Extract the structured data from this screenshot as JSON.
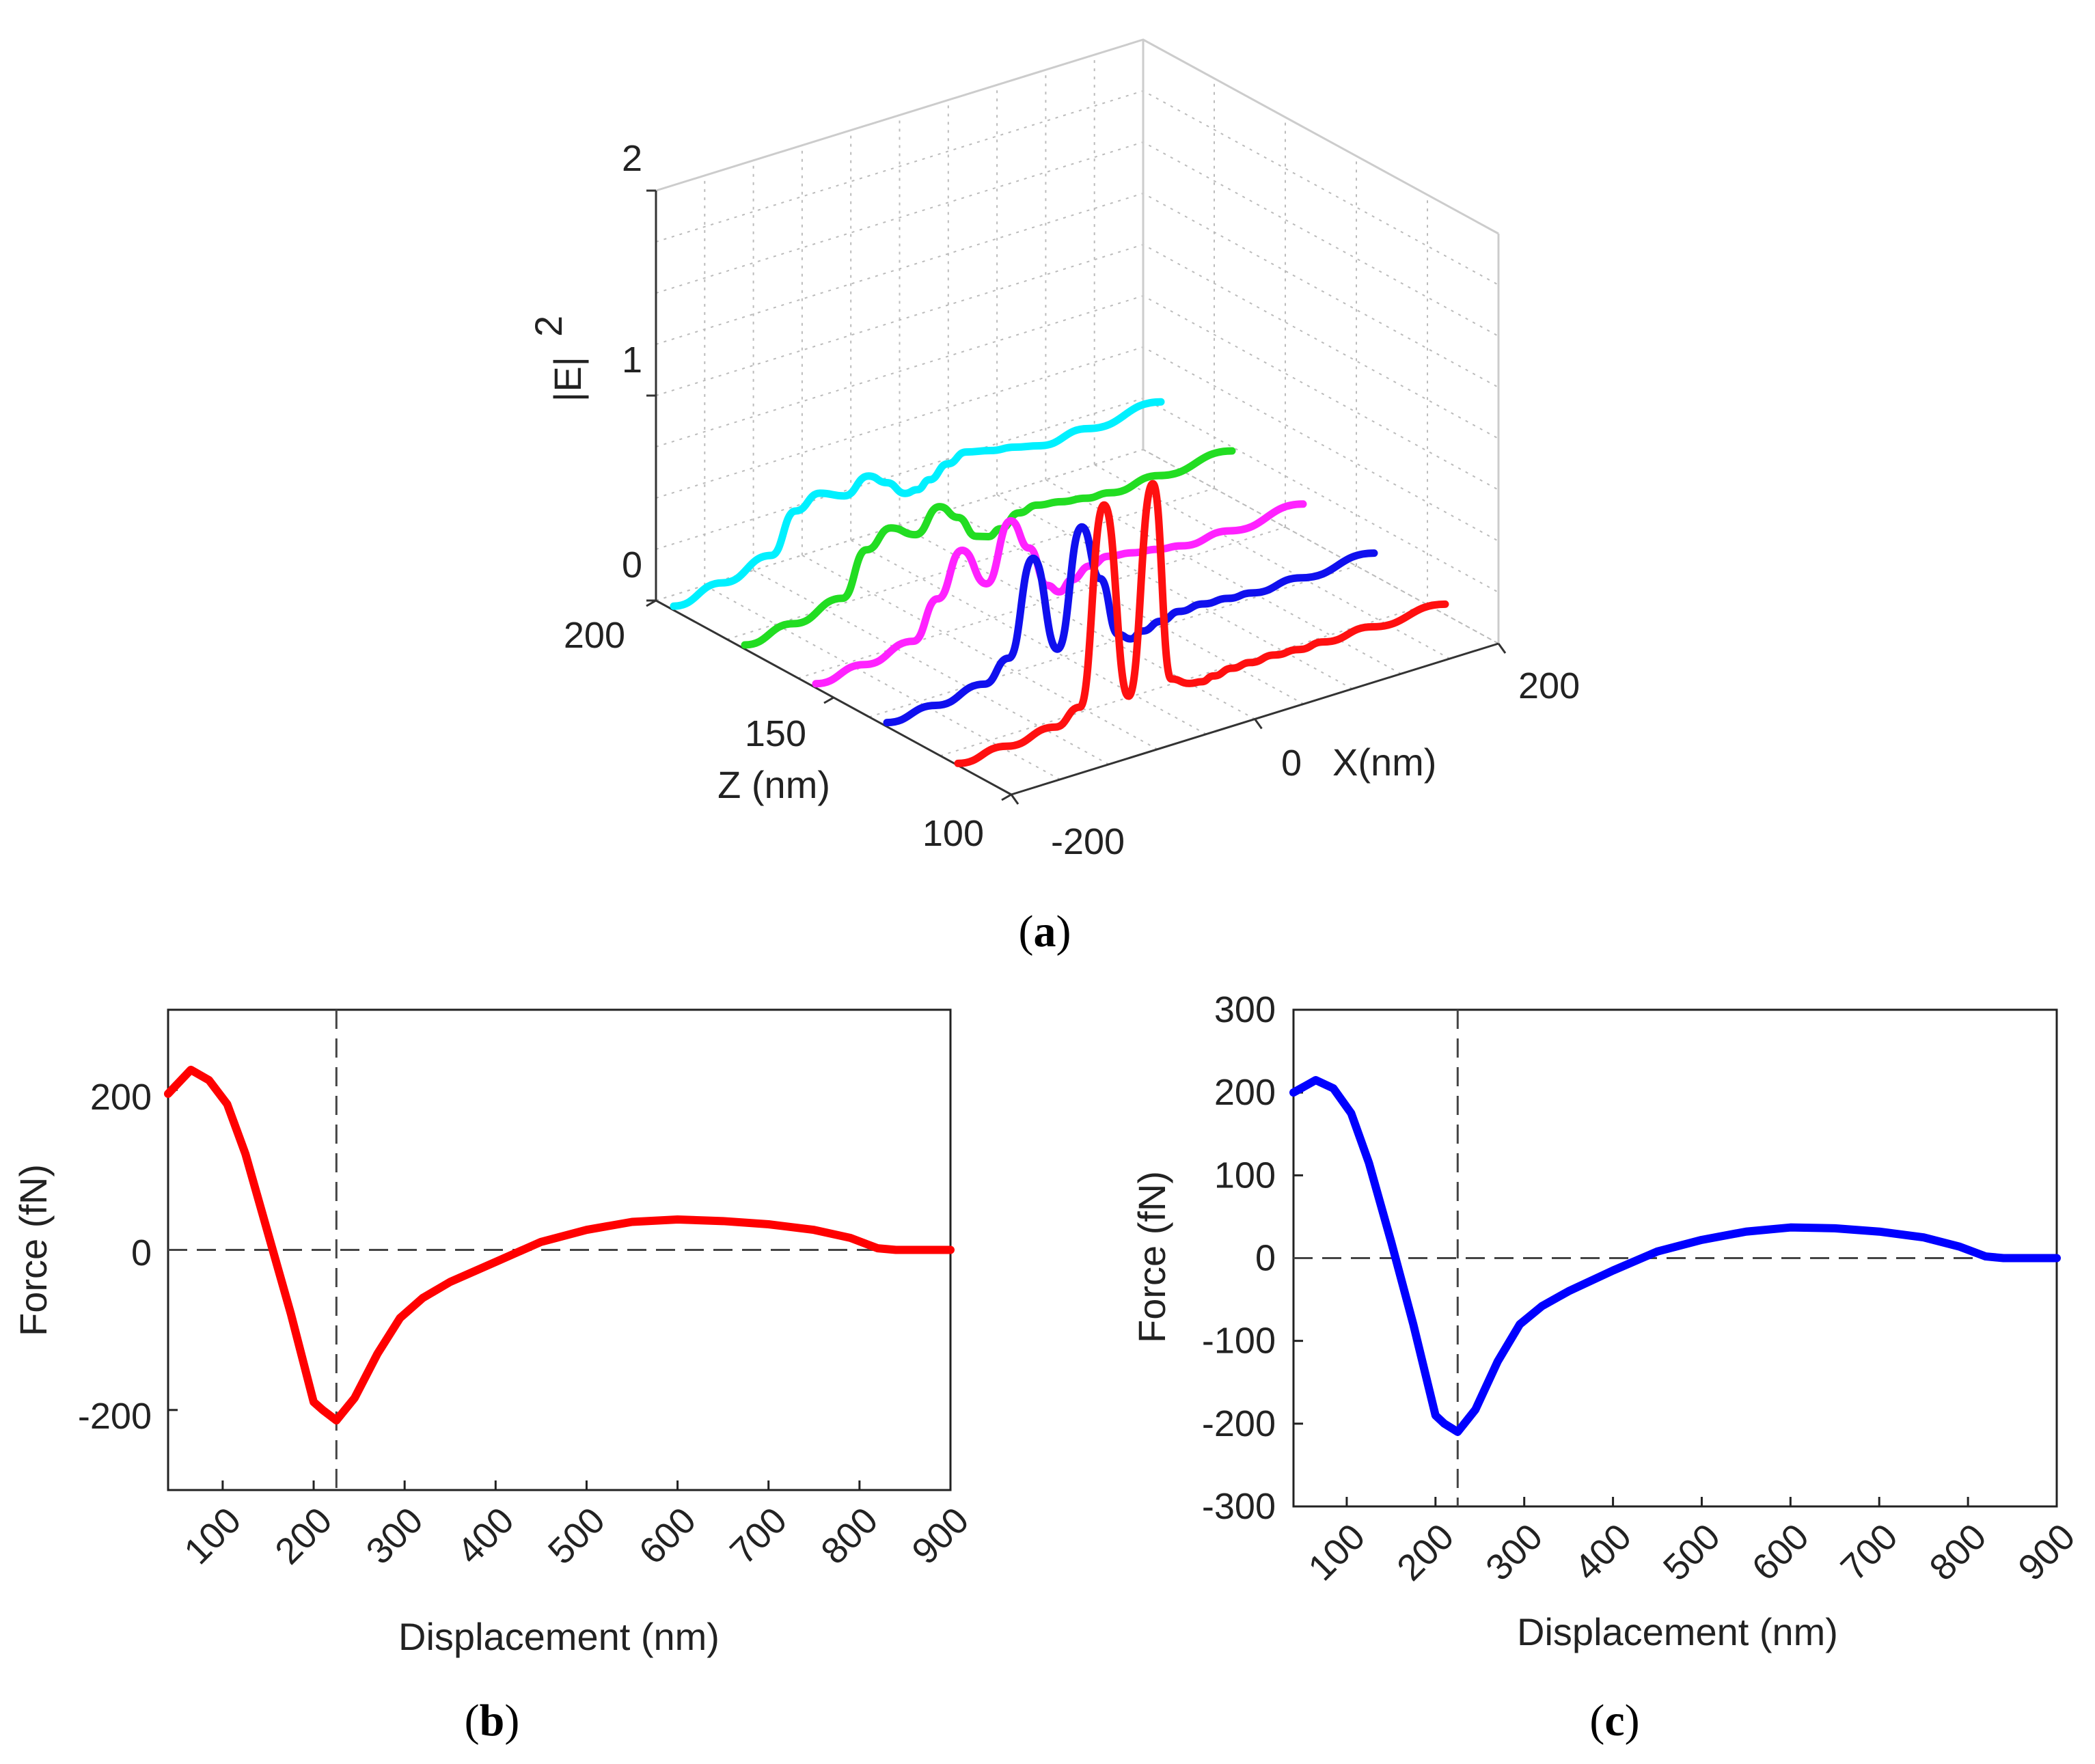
{
  "chart_data": [
    {
      "panel": "a",
      "type": "line",
      "subtype": "3d-waterfall",
      "title": "",
      "zlabel_text": "|E|",
      "zlabel_exponent": "2",
      "xlabel": "X(nm)",
      "ylabel": "Z (nm)",
      "x_ticks": [
        "-200",
        "0",
        "200"
      ],
      "depth_ticks": [
        "100",
        "150",
        "200"
      ],
      "z_ticks": [
        "0",
        "1",
        "2"
      ],
      "xlim": [
        -200,
        200
      ],
      "depth_lim": [
        100,
        200
      ],
      "zlim": [
        0,
        2
      ],
      "grid": true,
      "x_sample": [
        -200,
        -160,
        -120,
        -100,
        -80,
        -60,
        -40,
        -25,
        -10,
        0,
        10,
        25,
        40,
        60,
        80,
        100,
        140,
        200
      ],
      "series": [
        {
          "name": "cyan",
          "color": "#00f0ff",
          "depth": 195,
          "values": [
            0.02,
            0.06,
            0.12,
            0.3,
            0.35,
            0.3,
            0.36,
            0.3,
            0.22,
            0.22,
            0.25,
            0.3,
            0.33,
            0.3,
            0.28,
            0.25,
            0.26,
            0.28
          ]
        },
        {
          "name": "green",
          "color": "#22dd22",
          "depth": 175,
          "values": [
            0.02,
            0.05,
            0.1,
            0.3,
            0.37,
            0.3,
            0.4,
            0.32,
            0.2,
            0.18,
            0.2,
            0.25,
            0.26,
            0.24,
            0.22,
            0.21,
            0.22,
            0.23
          ]
        },
        {
          "name": "magenta",
          "color": "#ff22ff",
          "depth": 155,
          "values": [
            0.02,
            0.04,
            0.08,
            0.25,
            0.45,
            0.25,
            0.52,
            0.36,
            0.15,
            0.1,
            0.14,
            0.18,
            0.2,
            0.18,
            0.16,
            0.14,
            0.14,
            0.16
          ]
        },
        {
          "name": "blue",
          "color": "#1010ee",
          "depth": 135,
          "values": [
            0.02,
            0.03,
            0.06,
            0.15,
            0.6,
            0.12,
            0.68,
            0.4,
            0.1,
            0.06,
            0.08,
            0.1,
            0.12,
            0.12,
            0.11,
            0.1,
            0.1,
            0.11
          ]
        },
        {
          "name": "red",
          "color": "#ff1010",
          "depth": 115,
          "values": [
            0.01,
            0.02,
            0.04,
            0.1,
            1.05,
            0.08,
            1.08,
            0.1,
            0.05,
            0.04,
            0.05,
            0.06,
            0.06,
            0.06,
            0.05,
            0.05,
            0.05,
            0.05
          ]
        }
      ]
    },
    {
      "panel": "b",
      "type": "line",
      "title": "",
      "xlabel": "Displacement (nm)",
      "ylabel": "Force (fN)",
      "xlim": [
        40,
        900
      ],
      "ylim": [
        -300,
        300
      ],
      "x_ticks": [
        "100",
        "200",
        "300",
        "400",
        "500",
        "600",
        "700",
        "800",
        "900"
      ],
      "y_ticks": [
        "200",
        "0",
        "-200"
      ],
      "y_tick_values": [
        200,
        0,
        -200
      ],
      "grid": false,
      "color": "#ff0000",
      "reference_lines": {
        "x": 225,
        "y": 0
      },
      "x": [
        40,
        65,
        85,
        105,
        125,
        150,
        175,
        200,
        210,
        225,
        245,
        270,
        295,
        320,
        350,
        400,
        450,
        500,
        550,
        600,
        650,
        700,
        750,
        790,
        820,
        840,
        860,
        900
      ],
      "y": [
        195,
        225,
        212,
        182,
        120,
        20,
        -80,
        -190,
        -200,
        -213,
        -185,
        -130,
        -85,
        -60,
        -40,
        -15,
        10,
        25,
        35,
        38,
        36,
        32,
        25,
        15,
        2,
        0,
        0,
        0
      ]
    },
    {
      "panel": "c",
      "type": "line",
      "title": "",
      "xlabel": "Displacement (nm)",
      "ylabel": "Force (fN)",
      "xlim": [
        40,
        900
      ],
      "ylim": [
        -300,
        300
      ],
      "x_ticks": [
        "100",
        "200",
        "300",
        "400",
        "500",
        "600",
        "700",
        "800",
        "900"
      ],
      "y_ticks": [
        "300",
        "200",
        "100",
        "0",
        "-100",
        "-200",
        "-300"
      ],
      "y_tick_values": [
        300,
        200,
        100,
        0,
        -100,
        -200,
        -300
      ],
      "grid": false,
      "color": "#0000ff",
      "reference_lines": {
        "x": 225,
        "y": 0
      },
      "x": [
        40,
        65,
        85,
        105,
        125,
        150,
        175,
        200,
        210,
        225,
        245,
        270,
        295,
        320,
        350,
        400,
        450,
        500,
        550,
        600,
        650,
        700,
        750,
        790,
        820,
        840,
        860,
        900
      ],
      "y": [
        200,
        215,
        205,
        175,
        115,
        20,
        -80,
        -190,
        -200,
        -210,
        -183,
        -125,
        -80,
        -58,
        -40,
        -15,
        8,
        22,
        32,
        37,
        36,
        32,
        25,
        14,
        2,
        0,
        0,
        0
      ]
    }
  ],
  "panel_labels": {
    "a": "a",
    "b": "b",
    "c": "c"
  }
}
